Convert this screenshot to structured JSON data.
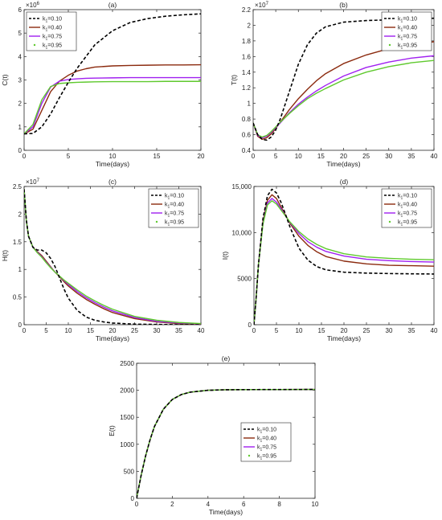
{
  "legend_prefix": "k",
  "legend_sub": "1",
  "chart_data": [
    {
      "id": "a",
      "panel_label": "(a)",
      "type": "line",
      "xlabel": "Time(days)",
      "ylabel": "C(t)",
      "exponent": "6",
      "xlim": [
        0,
        20
      ],
      "ylim": [
        0,
        6
      ],
      "xticks": [
        0,
        5,
        10,
        15,
        20
      ],
      "xtick_labels": [
        "0",
        "5",
        "10",
        "15",
        "20"
      ],
      "yticks": [
        0,
        1,
        2,
        3,
        4,
        5,
        6
      ],
      "ytick_labels": [
        "0",
        "1",
        "2",
        "3",
        "4",
        "5",
        "6"
      ],
      "legend_position": "top-left",
      "grid": false,
      "series": [
        {
          "name": "=0.10",
          "style": "dash",
          "color": "#000000",
          "x": [
            0,
            1,
            2,
            3,
            4,
            5,
            6,
            7,
            8,
            10,
            12,
            14,
            16,
            18,
            20
          ],
          "y": [
            0.7,
            0.72,
            1.0,
            1.55,
            2.25,
            2.9,
            3.5,
            4.0,
            4.5,
            5.1,
            5.45,
            5.62,
            5.72,
            5.78,
            5.82
          ]
        },
        {
          "name": "=0.40",
          "style": "solid",
          "color": "#8b2a0e",
          "x": [
            0,
            1,
            2,
            3,
            4,
            5,
            6,
            7,
            8,
            10,
            12,
            14,
            16,
            18,
            20
          ],
          "y": [
            0.7,
            0.9,
            1.7,
            2.5,
            2.95,
            3.2,
            3.38,
            3.48,
            3.55,
            3.6,
            3.62,
            3.63,
            3.64,
            3.64,
            3.65
          ]
        },
        {
          "name": "=0.75",
          "style": "solid",
          "color": "#a020f0",
          "x": [
            0,
            1,
            2,
            3,
            4,
            5,
            6,
            7,
            8,
            10,
            12,
            14,
            16,
            18,
            20
          ],
          "y": [
            0.7,
            1.0,
            2.0,
            2.7,
            2.95,
            3.02,
            3.05,
            3.07,
            3.08,
            3.09,
            3.1,
            3.1,
            3.1,
            3.1,
            3.1
          ]
        },
        {
          "name": "=0.95",
          "style": "solid",
          "color": "#5fc92e",
          "x": [
            0,
            1,
            2,
            3,
            4,
            5,
            6,
            7,
            8,
            10,
            12,
            14,
            16,
            18,
            20
          ],
          "y": [
            0.7,
            1.1,
            2.15,
            2.72,
            2.85,
            2.88,
            2.9,
            2.91,
            2.92,
            2.93,
            2.93,
            2.93,
            2.94,
            2.94,
            2.94
          ]
        }
      ]
    },
    {
      "id": "b",
      "panel_label": "(b)",
      "type": "line",
      "xlabel": "Time(days)",
      "ylabel": "T(t)",
      "exponent": "7",
      "xlim": [
        0,
        40
      ],
      "ylim": [
        0.4,
        2.2
      ],
      "xticks": [
        0,
        5,
        10,
        15,
        20,
        25,
        30,
        35,
        40
      ],
      "xtick_labels": [
        "0",
        "5",
        "10",
        "15",
        "20",
        "25",
        "30",
        "35",
        "40"
      ],
      "yticks": [
        0.4,
        0.6,
        0.8,
        1.0,
        1.2,
        1.4,
        1.6,
        1.8,
        2.0,
        2.2
      ],
      "ytick_labels": [
        "0.4",
        "0.6",
        "0.8",
        "1",
        "1.2",
        "1.4",
        "1.6",
        "1.8",
        "2",
        "2.2"
      ],
      "legend_position": "top-right",
      "grid": false,
      "series": [
        {
          "name": "=0.10",
          "style": "dash",
          "color": "#000000",
          "x": [
            0,
            1,
            2,
            3,
            4,
            5,
            6,
            8,
            10,
            12,
            14,
            16,
            20,
            25,
            30,
            35,
            40
          ],
          "y": [
            0.75,
            0.6,
            0.54,
            0.53,
            0.57,
            0.66,
            0.8,
            1.15,
            1.5,
            1.75,
            1.9,
            1.98,
            2.04,
            2.06,
            2.07,
            2.08,
            2.09
          ]
        },
        {
          "name": "=0.40",
          "style": "solid",
          "color": "#8b2a0e",
          "x": [
            0,
            1,
            2,
            3,
            4,
            5,
            6,
            8,
            10,
            12,
            14,
            16,
            20,
            25,
            30,
            35,
            40
          ],
          "y": [
            0.75,
            0.58,
            0.54,
            0.56,
            0.61,
            0.68,
            0.76,
            0.92,
            1.06,
            1.18,
            1.29,
            1.38,
            1.51,
            1.62,
            1.7,
            1.75,
            1.79
          ]
        },
        {
          "name": "=0.75",
          "style": "solid",
          "color": "#a020f0",
          "x": [
            0,
            1,
            2,
            3,
            4,
            5,
            6,
            8,
            10,
            12,
            14,
            16,
            20,
            25,
            30,
            35,
            40
          ],
          "y": [
            0.75,
            0.59,
            0.56,
            0.58,
            0.63,
            0.69,
            0.75,
            0.88,
            0.99,
            1.08,
            1.16,
            1.23,
            1.35,
            1.46,
            1.53,
            1.58,
            1.61
          ]
        },
        {
          "name": "=0.95",
          "style": "solid",
          "color": "#5fc92e",
          "x": [
            0,
            1,
            2,
            3,
            4,
            5,
            6,
            8,
            10,
            12,
            14,
            16,
            20,
            25,
            30,
            35,
            40
          ],
          "y": [
            0.75,
            0.6,
            0.57,
            0.59,
            0.64,
            0.7,
            0.76,
            0.87,
            0.97,
            1.06,
            1.13,
            1.19,
            1.3,
            1.4,
            1.47,
            1.52,
            1.55
          ]
        }
      ]
    },
    {
      "id": "c",
      "panel_label": "(c)",
      "type": "line",
      "xlabel": "Time(days)",
      "ylabel": "H(t)",
      "exponent": "7",
      "xlim": [
        0,
        40
      ],
      "ylim": [
        0,
        2.5
      ],
      "xticks": [
        0,
        5,
        10,
        15,
        20,
        25,
        30,
        35,
        40
      ],
      "xtick_labels": [
        "0",
        "5",
        "10",
        "15",
        "20",
        "25",
        "30",
        "35",
        "40"
      ],
      "yticks": [
        0,
        0.5,
        1.0,
        1.5,
        2.0,
        2.5
      ],
      "ytick_labels": [
        "0",
        "0.5",
        "1",
        "1.5",
        "2",
        "2.5"
      ],
      "legend_position": "top-right",
      "grid": false,
      "series": [
        {
          "name": "=0.10",
          "style": "dash",
          "color": "#000000",
          "x": [
            0,
            0.5,
            1,
            2,
            3,
            4,
            5,
            6,
            7,
            8,
            9,
            10,
            12,
            14,
            16,
            18,
            20,
            25,
            30,
            35,
            40
          ],
          "y": [
            2.45,
            1.9,
            1.6,
            1.4,
            1.35,
            1.35,
            1.3,
            1.2,
            1.05,
            0.85,
            0.65,
            0.48,
            0.26,
            0.14,
            0.08,
            0.05,
            0.03,
            0.01,
            0.005,
            0.0,
            0.0
          ]
        },
        {
          "name": "=0.40",
          "style": "solid",
          "color": "#8b2a0e",
          "x": [
            0,
            0.5,
            1,
            2,
            3,
            4,
            5,
            6,
            7,
            8,
            9,
            10,
            12,
            14,
            16,
            18,
            20,
            25,
            30,
            35,
            40
          ],
          "y": [
            2.45,
            1.88,
            1.6,
            1.4,
            1.32,
            1.25,
            1.15,
            1.05,
            0.95,
            0.87,
            0.78,
            0.7,
            0.57,
            0.46,
            0.37,
            0.29,
            0.22,
            0.11,
            0.05,
            0.02,
            0.01
          ]
        },
        {
          "name": "=0.75",
          "style": "solid",
          "color": "#a020f0",
          "x": [
            0,
            0.5,
            1,
            2,
            3,
            4,
            5,
            6,
            7,
            8,
            9,
            10,
            12,
            14,
            16,
            18,
            20,
            25,
            30,
            35,
            40
          ],
          "y": [
            2.45,
            1.88,
            1.6,
            1.4,
            1.31,
            1.23,
            1.13,
            1.04,
            0.95,
            0.88,
            0.8,
            0.73,
            0.6,
            0.49,
            0.4,
            0.32,
            0.25,
            0.13,
            0.06,
            0.03,
            0.015
          ]
        },
        {
          "name": "=0.95",
          "style": "solid",
          "color": "#5fc92e",
          "x": [
            0,
            0.5,
            1,
            2,
            3,
            4,
            5,
            6,
            7,
            8,
            9,
            10,
            12,
            14,
            16,
            18,
            20,
            25,
            30,
            35,
            40
          ],
          "y": [
            2.45,
            1.88,
            1.6,
            1.4,
            1.3,
            1.22,
            1.12,
            1.03,
            0.95,
            0.88,
            0.81,
            0.75,
            0.63,
            0.52,
            0.43,
            0.35,
            0.28,
            0.15,
            0.08,
            0.04,
            0.02
          ]
        }
      ]
    },
    {
      "id": "d",
      "panel_label": "(d)",
      "type": "line",
      "xlabel": "Time(days)",
      "ylabel": "I(t)",
      "exponent": "",
      "xlim": [
        0,
        40
      ],
      "ylim": [
        0,
        15000
      ],
      "xticks": [
        0,
        5,
        10,
        15,
        20,
        25,
        30,
        35,
        40
      ],
      "xtick_labels": [
        "0",
        "5",
        "10",
        "15",
        "20",
        "25",
        "30",
        "35",
        "40"
      ],
      "yticks": [
        0,
        5000,
        10000,
        15000
      ],
      "ytick_labels": [
        "0",
        "5000",
        "10,000",
        "15,000"
      ],
      "legend_position": "top-right",
      "grid": false,
      "series": [
        {
          "name": "=0.10",
          "style": "dash",
          "color": "#000000",
          "x": [
            0,
            0.5,
            1,
            2,
            3,
            4,
            5,
            6,
            7,
            8,
            10,
            12,
            14,
            16,
            20,
            25,
            30,
            35,
            40
          ],
          "y": [
            0,
            3000,
            6500,
            11500,
            14000,
            14700,
            14300,
            13300,
            12000,
            10600,
            8300,
            7000,
            6300,
            5950,
            5700,
            5600,
            5550,
            5520,
            5500
          ]
        },
        {
          "name": "=0.40",
          "style": "solid",
          "color": "#8b2a0e",
          "x": [
            0,
            0.5,
            1,
            2,
            3,
            4,
            5,
            6,
            7,
            8,
            10,
            12,
            14,
            16,
            20,
            25,
            30,
            35,
            40
          ],
          "y": [
            0,
            3000,
            6500,
            11200,
            13500,
            14100,
            13700,
            12800,
            11900,
            11000,
            9600,
            8600,
            7900,
            7400,
            6900,
            6600,
            6450,
            6400,
            6350
          ]
        },
        {
          "name": "=0.75",
          "style": "solid",
          "color": "#a020f0",
          "x": [
            0,
            0.5,
            1,
            2,
            3,
            4,
            5,
            6,
            7,
            8,
            10,
            12,
            14,
            16,
            20,
            25,
            30,
            35,
            40
          ],
          "y": [
            0,
            3000,
            6500,
            11000,
            13200,
            13700,
            13300,
            12600,
            11800,
            11100,
            9900,
            9000,
            8400,
            7950,
            7450,
            7100,
            6950,
            6850,
            6800
          ]
        },
        {
          "name": "=0.95",
          "style": "solid",
          "color": "#5fc92e",
          "x": [
            0,
            0.5,
            1,
            2,
            3,
            4,
            5,
            6,
            7,
            8,
            10,
            12,
            14,
            16,
            20,
            25,
            30,
            35,
            40
          ],
          "y": [
            0,
            3000,
            6500,
            10900,
            13000,
            13450,
            13100,
            12450,
            11800,
            11150,
            10100,
            9300,
            8700,
            8250,
            7700,
            7350,
            7200,
            7100,
            7050
          ]
        }
      ]
    },
    {
      "id": "e",
      "panel_label": "(e)",
      "type": "line",
      "xlabel": "Time(days)",
      "ylabel": "E(t)",
      "exponent": "",
      "xlim": [
        0,
        10
      ],
      "ylim": [
        0,
        2500
      ],
      "xticks": [
        0,
        2,
        4,
        6,
        8,
        10
      ],
      "xtick_labels": [
        "0",
        "2",
        "4",
        "6",
        "8",
        "10"
      ],
      "yticks": [
        0,
        500,
        1000,
        1500,
        2000,
        2500
      ],
      "ytick_labels": [
        "0",
        "500",
        "1000",
        "1500",
        "2000",
        "2500"
      ],
      "legend_position": "center-right",
      "grid": false,
      "series": [
        {
          "name": "=0.10",
          "style": "dash",
          "color": "#000000",
          "x": [
            0,
            0.25,
            0.5,
            0.75,
            1,
            1.5,
            2,
            2.5,
            3,
            4,
            5,
            6,
            7,
            8,
            10
          ],
          "y": [
            0,
            420,
            780,
            1080,
            1330,
            1650,
            1830,
            1920,
            1965,
            2000,
            2010,
            2012,
            2013,
            2014,
            2015
          ]
        },
        {
          "name": "=0.40",
          "style": "solid",
          "color": "#8b2a0e",
          "x": [
            0,
            0.25,
            0.5,
            0.75,
            1,
            1.5,
            2,
            2.5,
            3,
            4,
            5,
            6,
            7,
            8,
            10
          ],
          "y": [
            0,
            420,
            780,
            1080,
            1330,
            1650,
            1830,
            1920,
            1965,
            2000,
            2010,
            2012,
            2013,
            2014,
            2015
          ]
        },
        {
          "name": "=0.75",
          "style": "solid",
          "color": "#a020f0",
          "x": [
            0,
            0.25,
            0.5,
            0.75,
            1,
            1.5,
            2,
            2.5,
            3,
            4,
            5,
            6,
            7,
            8,
            10
          ],
          "y": [
            0,
            420,
            780,
            1080,
            1330,
            1650,
            1830,
            1920,
            1965,
            2000,
            2010,
            2012,
            2013,
            2014,
            2015
          ]
        },
        {
          "name": "=0.95",
          "style": "solid",
          "color": "#5fc92e",
          "x": [
            0,
            0.25,
            0.5,
            0.75,
            1,
            1.5,
            2,
            2.5,
            3,
            4,
            5,
            6,
            7,
            8,
            10
          ],
          "y": [
            0,
            420,
            780,
            1080,
            1330,
            1650,
            1830,
            1920,
            1965,
            2000,
            2010,
            2012,
            2013,
            2014,
            2015
          ]
        }
      ]
    }
  ]
}
